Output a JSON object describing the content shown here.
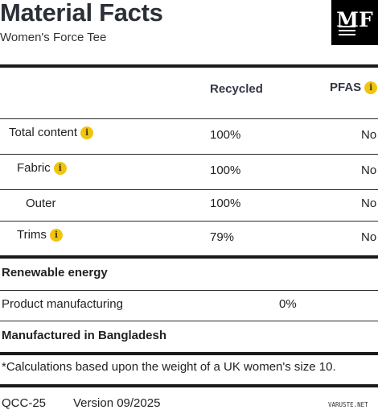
{
  "header": {
    "title": "Material Facts",
    "subtitle": "Women's Force Tee",
    "logo_text": "MF"
  },
  "table": {
    "columns": [
      "Recycled",
      "PFAS"
    ],
    "rows": [
      {
        "label": "Total content",
        "recycled": "100%",
        "pfas": "No",
        "info_icon": true
      },
      {
        "label": "Fabric",
        "recycled": "100%",
        "pfas": "No",
        "info_icon": true
      },
      {
        "label": "Outer",
        "recycled": "100%",
        "pfas": "No",
        "info_icon": false
      },
      {
        "label": "Trims",
        "recycled": "79%",
        "pfas": "No",
        "info_icon": true
      }
    ]
  },
  "energy": {
    "heading": "Renewable energy",
    "rows": [
      {
        "label": "Product manufacturing",
        "value": "0%"
      }
    ]
  },
  "origin": "Manufactured in Bangladesh",
  "footnote": "*Calculations based upon the weight of a UK women's size 10.",
  "footer": {
    "code": "QCC-25",
    "version": "Version 09/2025"
  },
  "watermark": "VARUSTE.NET",
  "colors": {
    "accent": "#f1c40f",
    "text": "#222222",
    "rule": "#1a1a1a"
  },
  "icons": [
    "info-icon"
  ]
}
